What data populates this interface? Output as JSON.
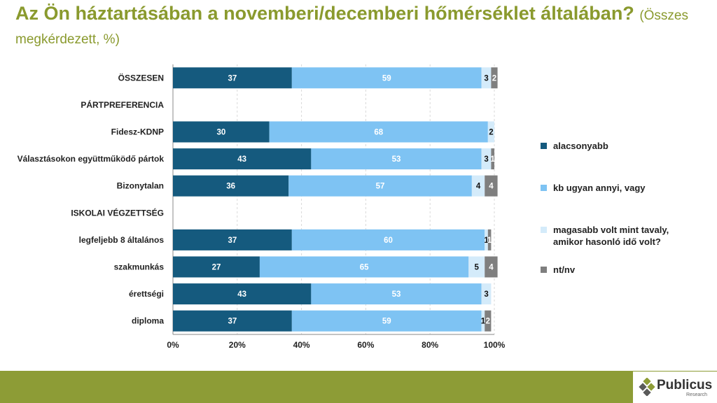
{
  "title": {
    "main": "Az Ön háztartásában a novemberi/decemberi hőmérséklet általában?",
    "sub": "(Összes megkérdezett, %)"
  },
  "chart_data": {
    "type": "bar",
    "orientation": "horizontal",
    "stacked": true,
    "categories": [
      "ÖSSZESEN",
      "PÁRTPREFERENCIA",
      "Fidesz-KDNP",
      "Választásokon együttműködő pártok",
      "Bizonytalan",
      "ISKOLAI VÉGZETTSÉG",
      "legfeljebb 8 általános",
      "szakmunkás",
      "érettségi",
      "diploma"
    ],
    "series": [
      {
        "name": "alacsonyabb",
        "color": "#155a7e",
        "values": [
          37,
          null,
          30,
          43,
          36,
          null,
          37,
          27,
          43,
          37
        ]
      },
      {
        "name": "kb ugyan annyi, vagy",
        "color": "#7ec3f3",
        "values": [
          59,
          null,
          68,
          53,
          57,
          null,
          60,
          65,
          53,
          59
        ]
      },
      {
        "name": "magasabb volt mint tavaly, amikor hasonló idő volt?",
        "color": "#d4ebfa",
        "values": [
          3,
          null,
          2,
          3,
          4,
          null,
          1,
          5,
          3,
          1
        ]
      },
      {
        "name": "nt/nv",
        "color": "#7f7f7f",
        "values": [
          2,
          null,
          0,
          1,
          4,
          null,
          1,
          4,
          0,
          2
        ]
      }
    ],
    "xlim": [
      0,
      100
    ],
    "x_ticks": [
      "0%",
      "20%",
      "40%",
      "60%",
      "80%",
      "100%"
    ],
    "grid": true,
    "legend_position": "right"
  },
  "legend": {
    "items": [
      "alacsonyabb",
      "kb ugyan annyi, vagy",
      "magasabb volt mint tavaly,",
      "amikor hasonló idő volt?",
      "nt/nv"
    ]
  },
  "logo": {
    "name": "Publicus",
    "tagline": "Research"
  }
}
